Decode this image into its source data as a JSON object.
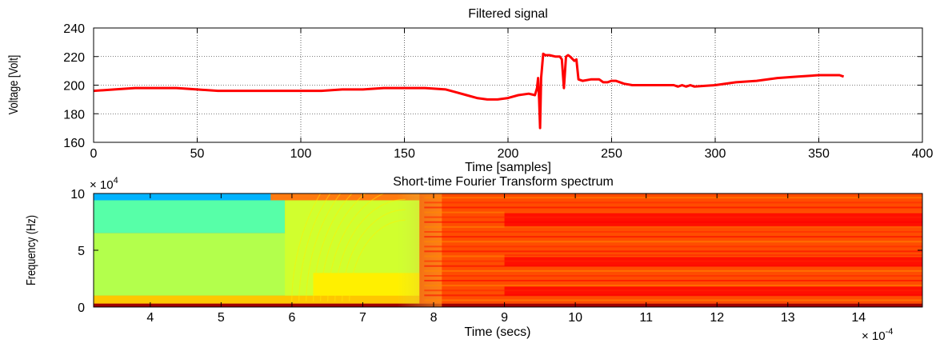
{
  "chart_data": [
    {
      "type": "line",
      "title": "Filtered signal",
      "xlabel": "Time [samples]",
      "ylabel": "Voltage [Volt]",
      "xlim": [
        0,
        400
      ],
      "ylim": [
        160,
        240
      ],
      "xticks": [
        0,
        50,
        100,
        150,
        200,
        250,
        300,
        350,
        400
      ],
      "yticks": [
        160,
        180,
        200,
        220,
        240
      ],
      "xtick_labels": [
        "0",
        "50",
        "100",
        "150",
        "200",
        "250",
        "300",
        "350",
        "400"
      ],
      "ytick_labels": [
        "160",
        "180",
        "200",
        "220",
        "240"
      ],
      "grid": true,
      "line_color": "#ff0000",
      "series": [
        {
          "x": [
            0,
            10,
            20,
            30,
            40,
            50,
            60,
            70,
            80,
            90,
            100,
            110,
            120,
            130,
            140,
            150,
            160,
            170,
            175,
            180,
            185,
            190,
            195,
            200,
            205,
            210,
            213,
            214,
            214.5,
            215,
            215.5,
            216,
            217,
            218,
            220,
            223,
            225,
            226,
            227,
            228,
            229,
            230,
            232,
            233,
            234,
            236,
            240,
            244,
            246,
            248,
            250,
            252,
            256,
            260,
            270,
            280,
            282,
            284,
            286,
            288,
            290,
            300,
            310,
            320,
            330,
            340,
            350,
            355,
            360,
            362
          ],
          "y": [
            196,
            197,
            198,
            198,
            198,
            197,
            196,
            196,
            196,
            196,
            196,
            196,
            197,
            197,
            198,
            198,
            198,
            197,
            195,
            193,
            191,
            190,
            190,
            191,
            193,
            194,
            193,
            198,
            205,
            190,
            170,
            205,
            222,
            221,
            221,
            220,
            220,
            218,
            198,
            220,
            221,
            220,
            217,
            218,
            204,
            203,
            204,
            204,
            202,
            202,
            203,
            203,
            201,
            200,
            200,
            200,
            199,
            200,
            199,
            200,
            199,
            200,
            202,
            203,
            205,
            206,
            207,
            207,
            207,
            206
          ]
        }
      ]
    },
    {
      "type": "heatmap",
      "title": "Short-time Fourier Transform spectrum",
      "xlabel": "Time (secs)",
      "ylabel": "Frequency (Hz)",
      "xlim": [
        3.2,
        14.9
      ],
      "ylim": [
        0,
        10
      ],
      "xticks": [
        4,
        5,
        6,
        7,
        8,
        9,
        10,
        11,
        12,
        13,
        14
      ],
      "yticks": [
        0,
        5,
        10
      ],
      "xtick_labels": [
        "4",
        "5",
        "6",
        "7",
        "8",
        "9",
        "10",
        "11",
        "12",
        "13",
        "14"
      ],
      "ytick_labels": [
        "0",
        "5",
        "10"
      ],
      "x_multiplier": "× 10",
      "x_multiplier_exp": "-4",
      "y_multiplier": "× 10",
      "y_multiplier_exp": "4",
      "colormap": "jet",
      "regions": [
        {
          "x_range": [
            3.2,
            5.7
          ],
          "y_range": [
            9.4,
            10
          ],
          "level": 0.3
        },
        {
          "x_range": [
            3.2,
            5.9
          ],
          "y_range": [
            6.5,
            9.4
          ],
          "level": 0.46
        },
        {
          "x_range": [
            3.2,
            6.3
          ],
          "y_range": [
            1.0,
            6.5
          ],
          "level": 0.55
        },
        {
          "x_range": [
            5.9,
            7.8
          ],
          "y_range": [
            1.0,
            9.4
          ],
          "level": 0.58
        },
        {
          "x_range": [
            6.3,
            7.8
          ],
          "y_range": [
            0.6,
            3.0
          ],
          "level": 0.64
        },
        {
          "x_range": [
            3.2,
            7.8
          ],
          "y_range": [
            0.3,
            1.0
          ],
          "level": 0.68
        },
        {
          "x_range": [
            7.8,
            14.9
          ],
          "y_range": [
            0.3,
            10
          ],
          "level": 0.8
        },
        {
          "x_range": [
            9.0,
            14.9
          ],
          "y_range": [
            7.0,
            8.4
          ],
          "level": 0.86
        },
        {
          "x_range": [
            9.0,
            14.9
          ],
          "y_range": [
            3.6,
            4.6
          ],
          "level": 0.86
        },
        {
          "x_range": [
            9.0,
            14.9
          ],
          "y_range": [
            1.0,
            1.8
          ],
          "level": 0.86
        },
        {
          "x_range": [
            3.2,
            14.9
          ],
          "y_range": [
            0,
            0.3
          ],
          "level": 0.97
        }
      ]
    }
  ]
}
